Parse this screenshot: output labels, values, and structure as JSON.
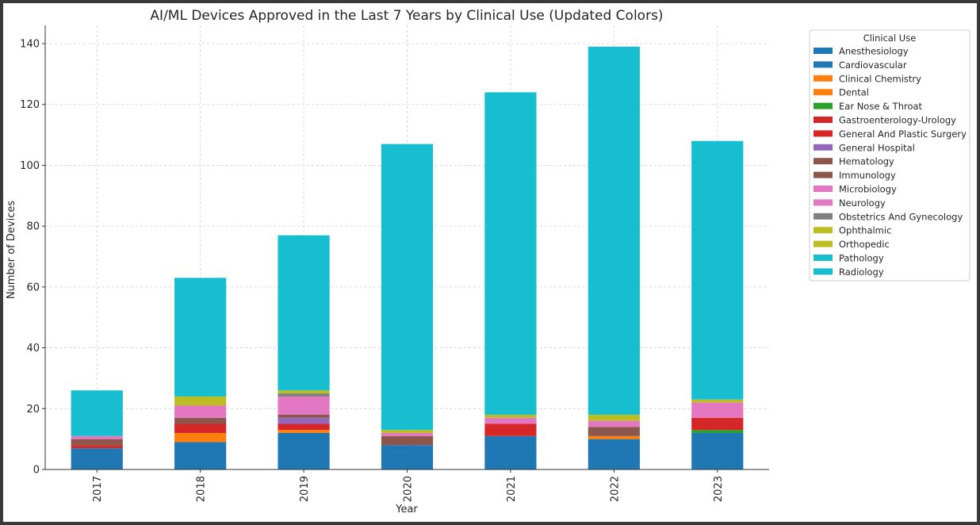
{
  "chart_data": {
    "type": "bar",
    "stacked": true,
    "title": "AI/ML Devices Approved in the Last 7 Years by Clinical Use (Updated Colors)",
    "xlabel": "Year",
    "ylabel": "Number of Devices",
    "ylim": [
      0,
      146
    ],
    "yticks": [
      0,
      20,
      40,
      60,
      80,
      100,
      120,
      140
    ],
    "grid": true,
    "legend_title": "Clinical Use",
    "legend_position": "outside-right",
    "categories": [
      "2017",
      "2018",
      "2019",
      "2020",
      "2021",
      "2022",
      "2023"
    ],
    "series": [
      {
        "name": "Anesthesiology",
        "color": "#1f77b4",
        "values": [
          0,
          0,
          0,
          0,
          0,
          0,
          0
        ]
      },
      {
        "name": "Cardiovascular",
        "color": "#1f77b4",
        "values": [
          7,
          9,
          12,
          8,
          11,
          10,
          12
        ]
      },
      {
        "name": "Clinical Chemistry",
        "color": "#ff7f0e",
        "values": [
          0,
          0,
          0,
          0,
          0,
          0,
          0
        ]
      },
      {
        "name": "Dental",
        "color": "#ff7f0e",
        "values": [
          0,
          3,
          1,
          0,
          0,
          1,
          0
        ]
      },
      {
        "name": "Ear Nose & Throat",
        "color": "#2ca02c",
        "values": [
          0,
          0,
          0,
          0,
          0,
          0,
          1
        ]
      },
      {
        "name": "Gastroenterology-Urology",
        "color": "#d62728",
        "values": [
          1,
          0,
          0,
          0,
          0,
          0,
          0
        ]
      },
      {
        "name": "General And Plastic Surgery",
        "color": "#d62728",
        "values": [
          0,
          3,
          2,
          0,
          4,
          0,
          4
        ]
      },
      {
        "name": "General Hospital",
        "color": "#9467bd",
        "values": [
          0,
          0,
          2,
          0,
          0,
          0,
          0
        ]
      },
      {
        "name": "Hematology",
        "color": "#8c564b",
        "values": [
          0,
          0,
          0,
          0,
          0,
          1,
          0
        ]
      },
      {
        "name": "Immunology",
        "color": "#8c564b",
        "values": [
          2,
          2,
          1,
          3,
          0,
          2,
          0
        ]
      },
      {
        "name": "Microbiology",
        "color": "#e377c2",
        "values": [
          0,
          0,
          0,
          0,
          0,
          0,
          0
        ]
      },
      {
        "name": "Neurology",
        "color": "#e377c2",
        "values": [
          1,
          4,
          6,
          1,
          2,
          2,
          5
        ]
      },
      {
        "name": "Obstetrics And Gynecology",
        "color": "#7f7f7f",
        "values": [
          0,
          0,
          1,
          0,
          0,
          0,
          0
        ]
      },
      {
        "name": "Ophthalmic",
        "color": "#bcbd22",
        "values": [
          0,
          0,
          0,
          0,
          0,
          0,
          0
        ]
      },
      {
        "name": "Orthopedic",
        "color": "#bcbd22",
        "values": [
          0,
          3,
          1,
          1,
          1,
          2,
          1
        ]
      },
      {
        "name": "Pathology",
        "color": "#17becf",
        "values": [
          0,
          0,
          0,
          0,
          0,
          0,
          0
        ]
      },
      {
        "name": "Radiology",
        "color": "#17becf",
        "values": [
          15,
          39,
          51,
          94,
          106,
          121,
          85
        ]
      }
    ]
  }
}
